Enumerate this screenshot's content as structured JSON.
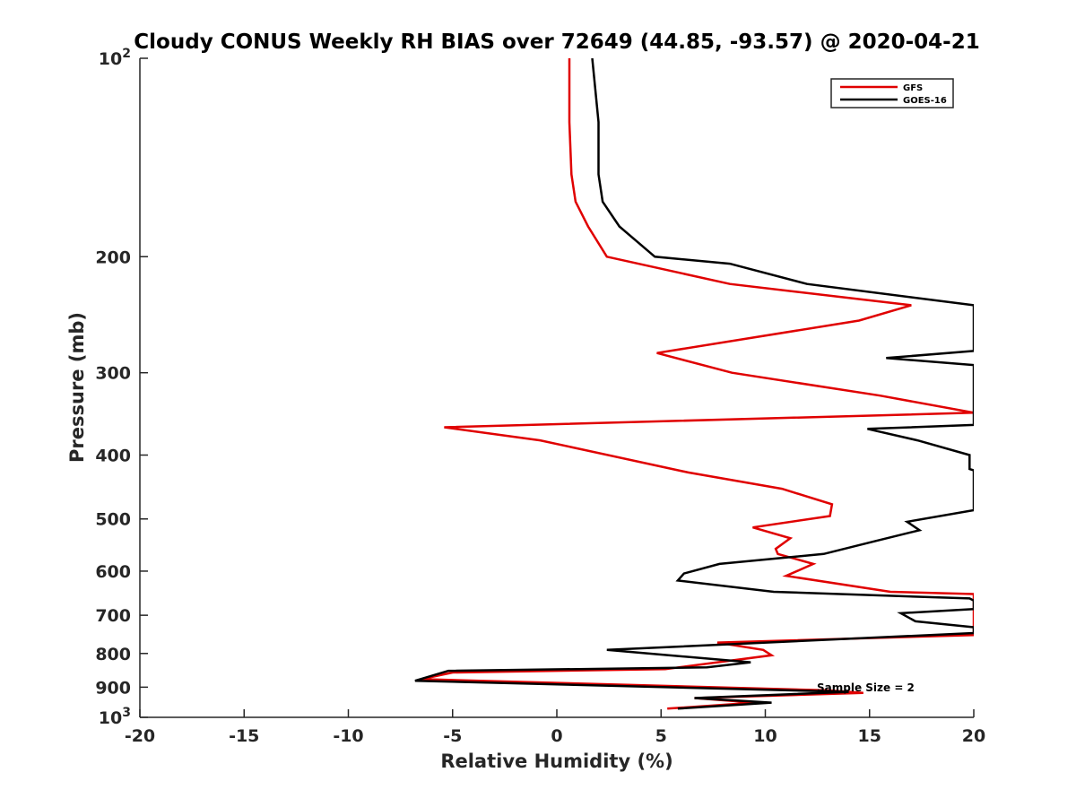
{
  "chart_data": {
    "type": "line",
    "title": "Cloudy CONUS Weekly RH BIAS over 72649 (44.85, -93.57) @ 2020-04-21",
    "xlabel": "Relative Humidity (%)",
    "ylabel": "Pressure (mb)",
    "xlim": [
      -20,
      20
    ],
    "ylim": [
      100,
      1000
    ],
    "y_scale": "log",
    "y_reversed": true,
    "x_ticks": [
      "-20",
      "-15",
      "-10",
      "-5",
      "0",
      "5",
      "10",
      "15",
      "20"
    ],
    "y_ticks": [
      {
        "value": 100,
        "label": "10",
        "sup": "2"
      },
      {
        "value": 200,
        "label": "200",
        "sup": ""
      },
      {
        "value": 300,
        "label": "300",
        "sup": ""
      },
      {
        "value": 400,
        "label": "400",
        "sup": ""
      },
      {
        "value": 500,
        "label": "500",
        "sup": ""
      },
      {
        "value": 600,
        "label": "600",
        "sup": ""
      },
      {
        "value": 700,
        "label": "700",
        "sup": ""
      },
      {
        "value": 800,
        "label": "800",
        "sup": ""
      },
      {
        "value": 900,
        "label": "900",
        "sup": ""
      },
      {
        "value": 1000,
        "label": "10",
        "sup": "3"
      }
    ],
    "legend_position": "top-right",
    "grid": false,
    "annotation": "Sample Size = 2",
    "series": [
      {
        "name": "GFS",
        "color": "#e00000",
        "points": [
          [
            0.6,
            100
          ],
          [
            0.6,
            125
          ],
          [
            0.7,
            150
          ],
          [
            0.9,
            165
          ],
          [
            1.5,
            180
          ],
          [
            2.4,
            200
          ],
          [
            8.3,
            220
          ],
          [
            17,
            237
          ],
          [
            14.5,
            250
          ],
          [
            4.8,
            280
          ],
          [
            8.4,
            300
          ],
          [
            15.5,
            325
          ],
          [
            20,
            345
          ],
          [
            -5.4,
            363
          ],
          [
            -0.8,
            380
          ],
          [
            6.3,
            425
          ],
          [
            10.8,
            450
          ],
          [
            13.2,
            475
          ],
          [
            13.1,
            495
          ],
          [
            9.4,
            515
          ],
          [
            11.2,
            535
          ],
          [
            10.5,
            555
          ],
          [
            10.6,
            565
          ],
          [
            12.3,
            585
          ],
          [
            11,
            610
          ],
          [
            16,
            645
          ],
          [
            20,
            650
          ],
          [
            20,
            746
          ],
          [
            20,
            750
          ],
          [
            7.7,
            770
          ],
          [
            9.9,
            790
          ],
          [
            10.3,
            805
          ],
          [
            5.2,
            845
          ],
          [
            -5.0,
            855
          ],
          [
            -6.5,
            875
          ],
          [
            13,
            910
          ],
          [
            14.7,
            918
          ],
          [
            6.6,
            935
          ],
          [
            9.5,
            950
          ],
          [
            5.3,
            970
          ]
        ]
      },
      {
        "name": "GOES-16",
        "color": "#000000",
        "points": [
          [
            1.7,
            100
          ],
          [
            2,
            125
          ],
          [
            2,
            150
          ],
          [
            2.2,
            165
          ],
          [
            3,
            180
          ],
          [
            4.7,
            200
          ],
          [
            8.3,
            205
          ],
          [
            12,
            220
          ],
          [
            20,
            237
          ],
          [
            20,
            278
          ],
          [
            15.8,
            285
          ],
          [
            20,
            292
          ],
          [
            20,
            360
          ],
          [
            14.9,
            365
          ],
          [
            17.3,
            380
          ],
          [
            19.8,
            400
          ],
          [
            19.8,
            420
          ],
          [
            20,
            422
          ],
          [
            20,
            485
          ],
          [
            16.8,
            505
          ],
          [
            17.4,
            520
          ],
          [
            15.3,
            540
          ],
          [
            12.8,
            565
          ],
          [
            7.8,
            585
          ],
          [
            6.1,
            605
          ],
          [
            5.8,
            620
          ],
          [
            10.4,
            645
          ],
          [
            19.8,
            660
          ],
          [
            20,
            665
          ],
          [
            20,
            685
          ],
          [
            16.5,
            695
          ],
          [
            17.2,
            715
          ],
          [
            20,
            730
          ],
          [
            20,
            745
          ],
          [
            2.4,
            790
          ],
          [
            9.3,
            825
          ],
          [
            7.2,
            840
          ],
          [
            -5.2,
            850
          ],
          [
            -6.8,
            880
          ],
          [
            14,
            915
          ],
          [
            6.6,
            935
          ],
          [
            10.3,
            950
          ],
          [
            5.8,
            970
          ]
        ]
      }
    ]
  }
}
